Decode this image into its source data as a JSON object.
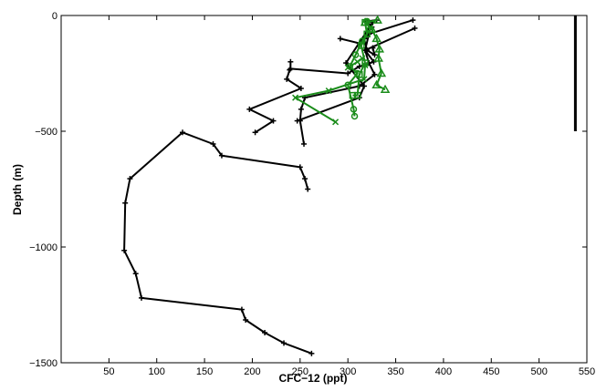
{
  "chart_data": {
    "type": "line",
    "title": "",
    "xlabel": "CFC−12 (ppt)",
    "ylabel": "Depth (m)",
    "xlim": [
      0,
      550
    ],
    "ylim": [
      -1500,
      0
    ],
    "xticks": [
      50,
      100,
      150,
      200,
      250,
      300,
      350,
      400,
      450,
      500,
      550
    ],
    "yticks": [
      -1500,
      -1000,
      -500,
      0
    ],
    "grid": false,
    "legend": "none",
    "colors": {
      "black": "#000000",
      "green": "#1a8c1a"
    },
    "series": [
      {
        "color": "black",
        "marker": "plus",
        "x": [
          262,
          233,
          213,
          193,
          189,
          84,
          78,
          66,
          67,
          72,
          127,
          159,
          168,
          250,
          255,
          258
        ],
        "y": [
          -1460,
          -1415,
          -1370,
          -1315,
          -1270,
          -1220,
          -1115,
          -1015,
          -810,
          -705,
          -505,
          -555,
          -605,
          -655,
          -705,
          -750
        ]
      },
      {
        "color": "black",
        "marker": "plus",
        "x": [
          203,
          222,
          197,
          251,
          236,
          239
        ],
        "y": [
          -505,
          -455,
          -405,
          -315,
          -275,
          -235
        ]
      },
      {
        "color": "black",
        "marker": "plus",
        "x": [
          254,
          250,
          251,
          255,
          312,
          328,
          322,
          318,
          370
        ],
        "y": [
          -555,
          -455,
          -405,
          -355,
          -305,
          -255,
          -205,
          -150,
          -55
        ]
      },
      {
        "color": "black",
        "marker": "plus",
        "x": [
          247,
          312,
          317,
          298,
          326
        ],
        "y": [
          -455,
          -355,
          -305,
          -205,
          -30
        ]
      },
      {
        "color": "black",
        "marker": "plus",
        "x": [
          240,
          240,
          300,
          312,
          327,
          318,
          322,
          368
        ],
        "y": [
          -200,
          -230,
          -250,
          -220,
          -200,
          -150,
          -80,
          -20
        ]
      },
      {
        "color": "black",
        "marker": "plus",
        "x": [
          292,
          312,
          317,
          320,
          328,
          326
        ],
        "y": [
          -100,
          -120,
          -100,
          -150,
          -170,
          -140
        ]
      },
      {
        "color": "black",
        "marker": "plus",
        "x": [
          319,
          325,
          320,
          330
        ],
        "y": [
          -90,
          -50,
          -25,
          -20
        ]
      },
      {
        "color": "black",
        "marker": "line",
        "x": [
          538,
          538
        ],
        "y": [
          -500,
          0
        ]
      },
      {
        "color": "green",
        "marker": "x",
        "x": [
          287,
          245,
          280,
          317,
          318
        ],
        "y": [
          -460,
          -355,
          -325,
          -275,
          -215
        ]
      },
      {
        "color": "green",
        "marker": "circle",
        "x": [
          307,
          306,
          300,
          310,
          302,
          308,
          315,
          323,
          320
        ],
        "y": [
          -435,
          -405,
          -300,
          -250,
          -220,
          -170,
          -110,
          -60,
          -25
        ]
      },
      {
        "color": "green",
        "marker": "square",
        "x": [
          305,
          310,
          312,
          318,
          314,
          320,
          318
        ],
        "y": [
          -345,
          -345,
          -255,
          -205,
          -130,
          -80,
          -30
        ]
      },
      {
        "color": "green",
        "marker": "triangle",
        "x": [
          339,
          330,
          335,
          332,
          333,
          330,
          325,
          318,
          331
        ],
        "y": [
          -320,
          -300,
          -250,
          -185,
          -145,
          -100,
          -60,
          -30,
          -20
        ]
      },
      {
        "color": "green",
        "marker": "x",
        "x": [
          300,
          310,
          315
        ],
        "y": [
          -225,
          -200,
          -185
        ]
      }
    ]
  }
}
